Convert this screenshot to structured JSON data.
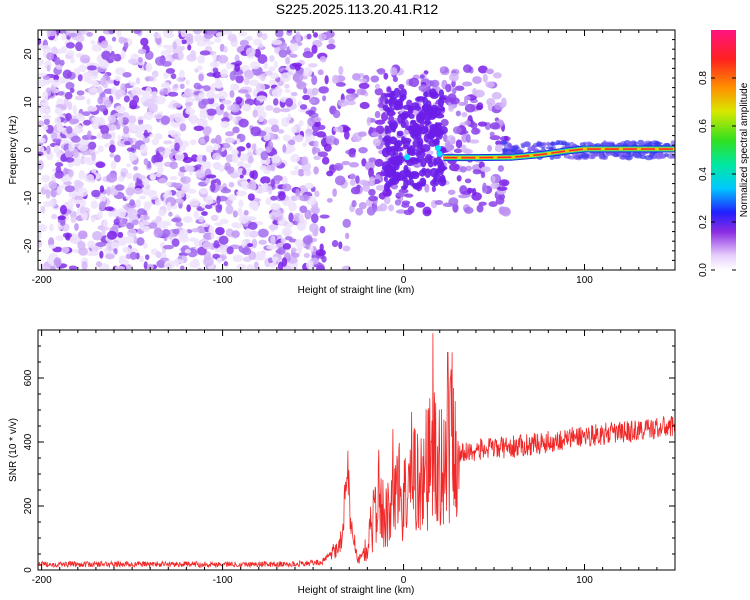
{
  "title": "S225.2025.113.20.41.R12",
  "chart_data": [
    {
      "type": "heatmap",
      "xlabel": "Height of straight line (km)",
      "ylabel": "Frequency (Hz)",
      "xlim": [
        -202,
        150
      ],
      "ylim": [
        -25,
        25
      ],
      "xticks": [
        -200,
        -100,
        0,
        100
      ],
      "yticks": [
        -20,
        -10,
        0,
        10,
        20
      ],
      "colorbar": {
        "label": "Normalized spectral amplitude",
        "range": [
          0,
          1
        ],
        "ticks": [
          "0.0",
          "0.2",
          "0.4",
          "0.6",
          "0.8"
        ]
      },
      "ridge": [
        {
          "x": 22,
          "y": -1.6
        },
        {
          "x": 40,
          "y": -1.6
        },
        {
          "x": 60,
          "y": -1.5
        },
        {
          "x": 75,
          "y": -1.0
        },
        {
          "x": 90,
          "y": -0.2
        },
        {
          "x": 100,
          "y": 0.2
        },
        {
          "x": 120,
          "y": 0.2
        },
        {
          "x": 150,
          "y": 0.2
        }
      ]
    },
    {
      "type": "line",
      "xlabel": "Height of straight line (km)",
      "ylabel": "SNR (10 * v/v)",
      "xlim": [
        -202,
        150
      ],
      "ylim": [
        0,
        750
      ],
      "xticks": [
        -200,
        -100,
        0,
        100
      ],
      "yticks": [
        0,
        200,
        400,
        600
      ],
      "color": "#f02828",
      "series_profile": [
        {
          "x": -202,
          "y": 18
        },
        {
          "x": -60,
          "y": 18
        },
        {
          "x": -45,
          "y": 25
        },
        {
          "x": -35,
          "y": 80
        },
        {
          "x": -31,
          "y": 270
        },
        {
          "x": -28,
          "y": 110
        },
        {
          "x": -25,
          "y": 30
        },
        {
          "x": -20,
          "y": 70
        },
        {
          "x": -14,
          "y": 240
        },
        {
          "x": -10,
          "y": 150
        },
        {
          "x": -5,
          "y": 300
        },
        {
          "x": 0,
          "y": 220
        },
        {
          "x": 5,
          "y": 320
        },
        {
          "x": 10,
          "y": 260
        },
        {
          "x": 15,
          "y": 380
        },
        {
          "x": 20,
          "y": 300
        },
        {
          "x": 25,
          "y": 420
        },
        {
          "x": 30,
          "y": 360
        },
        {
          "x": 40,
          "y": 375
        },
        {
          "x": 60,
          "y": 385
        },
        {
          "x": 80,
          "y": 400
        },
        {
          "x": 100,
          "y": 420
        },
        {
          "x": 120,
          "y": 430
        },
        {
          "x": 150,
          "y": 450
        }
      ]
    }
  ]
}
